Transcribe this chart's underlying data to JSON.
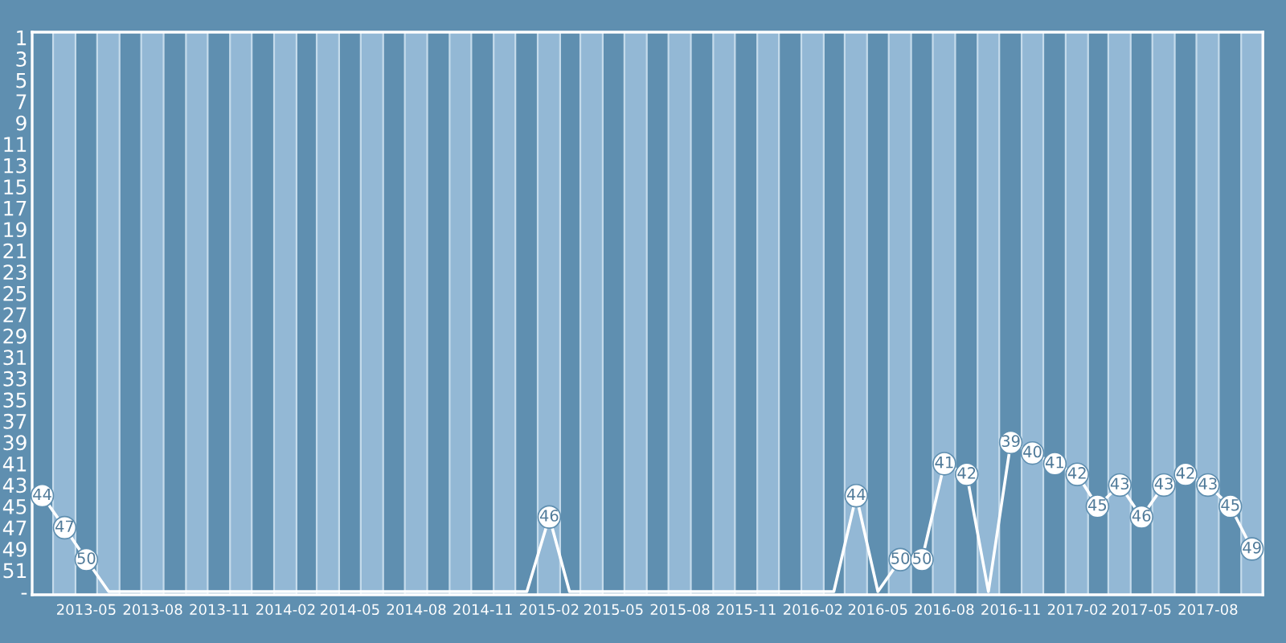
{
  "chart_data": {
    "type": "line",
    "x": [
      "2013-03",
      "2013-04",
      "2013-05",
      "2013-06",
      "2013-07",
      "2013-08",
      "2013-09",
      "2013-10",
      "2013-11",
      "2013-12",
      "2014-01",
      "2014-02",
      "2014-03",
      "2014-04",
      "2014-05",
      "2014-06",
      "2014-07",
      "2014-08",
      "2014-09",
      "2014-10",
      "2014-11",
      "2014-12",
      "2015-01",
      "2015-02",
      "2015-03",
      "2015-04",
      "2015-05",
      "2015-06",
      "2015-07",
      "2015-08",
      "2015-09",
      "2015-10",
      "2015-11",
      "2015-12",
      "2016-01",
      "2016-02",
      "2016-03",
      "2016-04",
      "2016-05",
      "2016-06",
      "2016-07",
      "2016-08",
      "2016-09",
      "2016-10",
      "2016-11",
      "2016-12",
      "2017-01",
      "2017-02",
      "2017-03",
      "2017-04",
      "2017-05",
      "2017-06",
      "2017-07",
      "2017-08",
      "2017-09",
      "2017-10"
    ],
    "series": [
      {
        "color": "#ffffff",
        "values": [
          44,
          47,
          50,
          53,
          53,
          53,
          53,
          53,
          53,
          53,
          53,
          53,
          53,
          53,
          53,
          53,
          53,
          53,
          53,
          53,
          53,
          53,
          53,
          46,
          53,
          53,
          53,
          53,
          53,
          53,
          53,
          53,
          53,
          53,
          53,
          53,
          53,
          44,
          53,
          50,
          50,
          41,
          42,
          53,
          39,
          40,
          41,
          42,
          45,
          43,
          46,
          43,
          42,
          43,
          45,
          49
        ],
        "value_labels": [
          "44",
          "47",
          "50",
          null,
          null,
          null,
          null,
          null,
          null,
          null,
          null,
          null,
          null,
          null,
          null,
          null,
          null,
          null,
          null,
          null,
          null,
          null,
          null,
          "46",
          null,
          null,
          null,
          null,
          null,
          null,
          null,
          null,
          null,
          null,
          null,
          null,
          null,
          "44",
          null,
          "50",
          "50",
          "41",
          "42",
          null,
          "39",
          "40",
          "41",
          "42",
          "45",
          "43",
          "46",
          "43",
          "42",
          "43",
          "45",
          "49"
        ]
      }
    ],
    "ylim": [
      53.3,
      0.5
    ],
    "yticks": [
      1,
      3,
      5,
      7,
      9,
      11,
      13,
      15,
      17,
      19,
      21,
      23,
      25,
      27,
      29,
      31,
      33,
      35,
      37,
      39,
      41,
      43,
      45,
      47,
      49,
      51,
      {
        "value": 53,
        "label": "-"
      }
    ],
    "xlim": [
      "2013-02-15",
      "2017-10-16"
    ],
    "xticks": [
      "2013-05",
      "2013-08",
      "2013-11",
      "2014-02",
      "2014-05",
      "2014-08",
      "2014-11",
      "2015-02",
      "2015-05",
      "2015-08",
      "2015-11",
      "2016-02",
      "2016-05",
      "2016-08",
      "2016-11",
      "2017-02",
      "2017-05",
      "2017-08"
    ],
    "bands": [
      {
        "axis": "x",
        "from": "2013-03-16",
        "to": "2013-04-16",
        "color": "#93b8d5"
      },
      {
        "axis": "x",
        "from": "2013-05-16",
        "to": "2013-06-16",
        "color": "#93b8d5"
      },
      {
        "axis": "x",
        "from": "2013-07-16",
        "to": "2013-08-16",
        "color": "#93b8d5"
      },
      {
        "axis": "x",
        "from": "2013-09-16",
        "to": "2013-10-16",
        "color": "#93b8d5"
      },
      {
        "axis": "x",
        "from": "2013-11-16",
        "to": "2013-12-16",
        "color": "#93b8d5"
      },
      {
        "axis": "x",
        "from": "2014-01-16",
        "to": "2014-02-16",
        "color": "#93b8d5"
      },
      {
        "axis": "x",
        "from": "2014-03-16",
        "to": "2014-04-16",
        "color": "#93b8d5"
      },
      {
        "axis": "x",
        "from": "2014-05-16",
        "to": "2014-06-16",
        "color": "#93b8d5"
      },
      {
        "axis": "x",
        "from": "2014-07-16",
        "to": "2014-08-16",
        "color": "#93b8d5"
      },
      {
        "axis": "x",
        "from": "2014-09-16",
        "to": "2014-10-16",
        "color": "#93b8d5"
      },
      {
        "axis": "x",
        "from": "2014-11-16",
        "to": "2014-12-16",
        "color": "#93b8d5"
      },
      {
        "axis": "x",
        "from": "2015-01-16",
        "to": "2015-02-16",
        "color": "#93b8d5"
      },
      {
        "axis": "x",
        "from": "2015-03-16",
        "to": "2015-04-16",
        "color": "#93b8d5"
      },
      {
        "axis": "x",
        "from": "2015-05-16",
        "to": "2015-06-16",
        "color": "#93b8d5"
      },
      {
        "axis": "x",
        "from": "2015-07-16",
        "to": "2015-08-16",
        "color": "#93b8d5"
      },
      {
        "axis": "x",
        "from": "2015-09-16",
        "to": "2015-10-16",
        "color": "#93b8d5"
      },
      {
        "axis": "x",
        "from": "2015-11-16",
        "to": "2015-12-16",
        "color": "#93b8d5"
      },
      {
        "axis": "x",
        "from": "2016-01-16",
        "to": "2016-02-16",
        "color": "#93b8d5"
      },
      {
        "axis": "x",
        "from": "2016-03-16",
        "to": "2016-04-16",
        "color": "#93b8d5"
      },
      {
        "axis": "x",
        "from": "2016-05-16",
        "to": "2016-06-16",
        "color": "#93b8d5"
      },
      {
        "axis": "x",
        "from": "2016-07-16",
        "to": "2016-08-16",
        "color": "#93b8d5"
      },
      {
        "axis": "x",
        "from": "2016-09-16",
        "to": "2016-10-16",
        "color": "#93b8d5"
      },
      {
        "axis": "x",
        "from": "2016-11-16",
        "to": "2016-12-16",
        "color": "#93b8d5"
      },
      {
        "axis": "x",
        "from": "2017-01-16",
        "to": "2017-02-16",
        "color": "#93b8d5"
      },
      {
        "axis": "x",
        "from": "2017-03-16",
        "to": "2017-04-16",
        "color": "#93b8d5"
      },
      {
        "axis": "x",
        "from": "2017-05-16",
        "to": "2017-06-16",
        "color": "#93b8d5"
      },
      {
        "axis": "x",
        "from": "2017-07-16",
        "to": "2017-08-16",
        "color": "#93b8d5"
      },
      {
        "axis": "x",
        "from": "2017-09-16",
        "to": "2017-10-16",
        "color": "#93b8d5"
      }
    ],
    "line_style": "solid",
    "legend": false
  }
}
